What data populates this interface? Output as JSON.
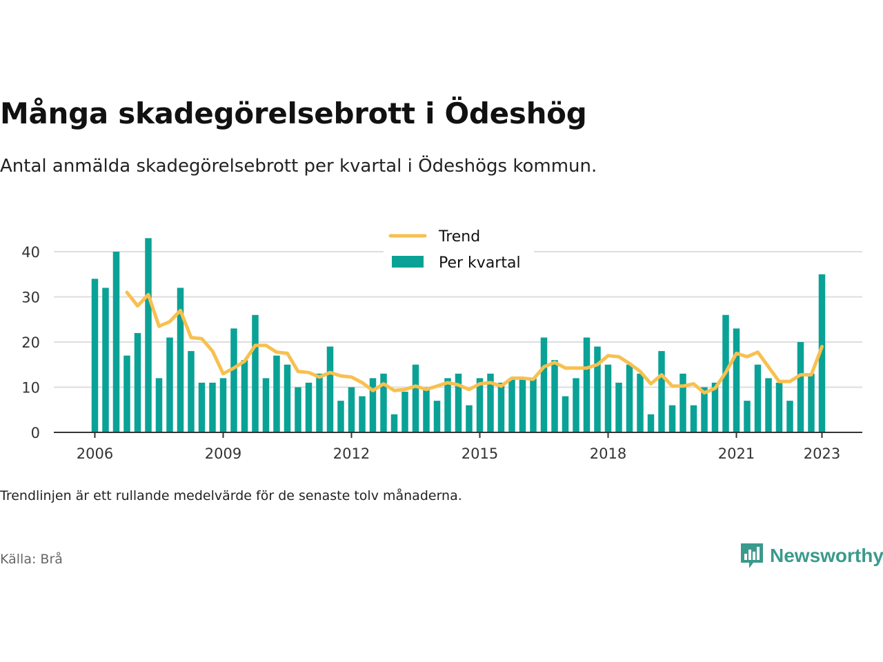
{
  "title": "Många skadegörelsebrott i Ödeshög",
  "subtitle": "Antal anmälda skadegörelsebrott per kvartal i Ödeshögs kommun.",
  "note": "Trendlinjen är ett rullande medelvärde för de senaste tolv månaderna.",
  "source": "Källa: Brå",
  "brand": {
    "name": "Newsworthy",
    "icon": "newsworthy-logo-icon"
  },
  "colors": {
    "bar": "#0aa296",
    "trend": "#f8c04f",
    "grid": "#dddddd",
    "axis": "#333333"
  },
  "chart_data": {
    "type": "bar",
    "x_start": "2006 Q1",
    "legend": {
      "placement": "top-center",
      "entries": [
        {
          "label": "Trend",
          "kind": "line"
        },
        {
          "label": "Per kvartal",
          "kind": "bar"
        }
      ]
    },
    "y_ticks": [
      0,
      10,
      20,
      30,
      40
    ],
    "x_ticks": [
      {
        "label": "2006",
        "index": 0
      },
      {
        "label": "2009",
        "index": 12
      },
      {
        "label": "2012",
        "index": 24
      },
      {
        "label": "2015",
        "index": 36
      },
      {
        "label": "2018",
        "index": 48
      },
      {
        "label": "2021",
        "index": 60
      },
      {
        "label": "2023",
        "index": 68
      }
    ],
    "ylim": [
      0,
      46
    ],
    "grid": true,
    "series": [
      {
        "name": "Per kvartal",
        "type": "bar",
        "values": [
          34,
          32,
          40,
          17,
          22,
          43,
          12,
          21,
          32,
          18,
          11,
          11,
          12,
          23,
          16,
          26,
          12,
          17,
          15,
          10,
          11,
          13,
          19,
          7,
          10,
          8,
          12,
          13,
          4,
          9,
          15,
          10,
          7,
          12,
          13,
          6,
          12,
          13,
          11,
          12,
          12,
          12,
          21,
          16,
          8,
          12,
          21,
          19,
          15,
          11,
          15,
          13,
          4,
          18,
          6,
          13,
          6,
          10,
          11,
          26,
          23,
          7,
          15,
          12,
          11,
          7,
          20,
          13,
          35
        ]
      },
      {
        "name": "Trend",
        "type": "line",
        "values": [
          null,
          null,
          null,
          31,
          28,
          30.5,
          23.5,
          24.5,
          27,
          21,
          20.75,
          18,
          13,
          14.25,
          15.75,
          19.25,
          19.25,
          17.75,
          17.5,
          13.5,
          13.25,
          12.25,
          13.25,
          12.5,
          12.25,
          11,
          9.25,
          10.75,
          9.25,
          9.5,
          10.25,
          9.5,
          10.25,
          11,
          10.5,
          9.5,
          10.75,
          11,
          10.25,
          12,
          12,
          11.75,
          14.5,
          15.5,
          14.25,
          14.25,
          14.25,
          15,
          17,
          16.75,
          15.25,
          13.5,
          10.75,
          12.75,
          10.25,
          10.25,
          10.75,
          8.75,
          9.75,
          13.25,
          17.5,
          16.75,
          17.75,
          14.5,
          11.25,
          11.25,
          12.75,
          12.75,
          19
        ]
      }
    ]
  }
}
